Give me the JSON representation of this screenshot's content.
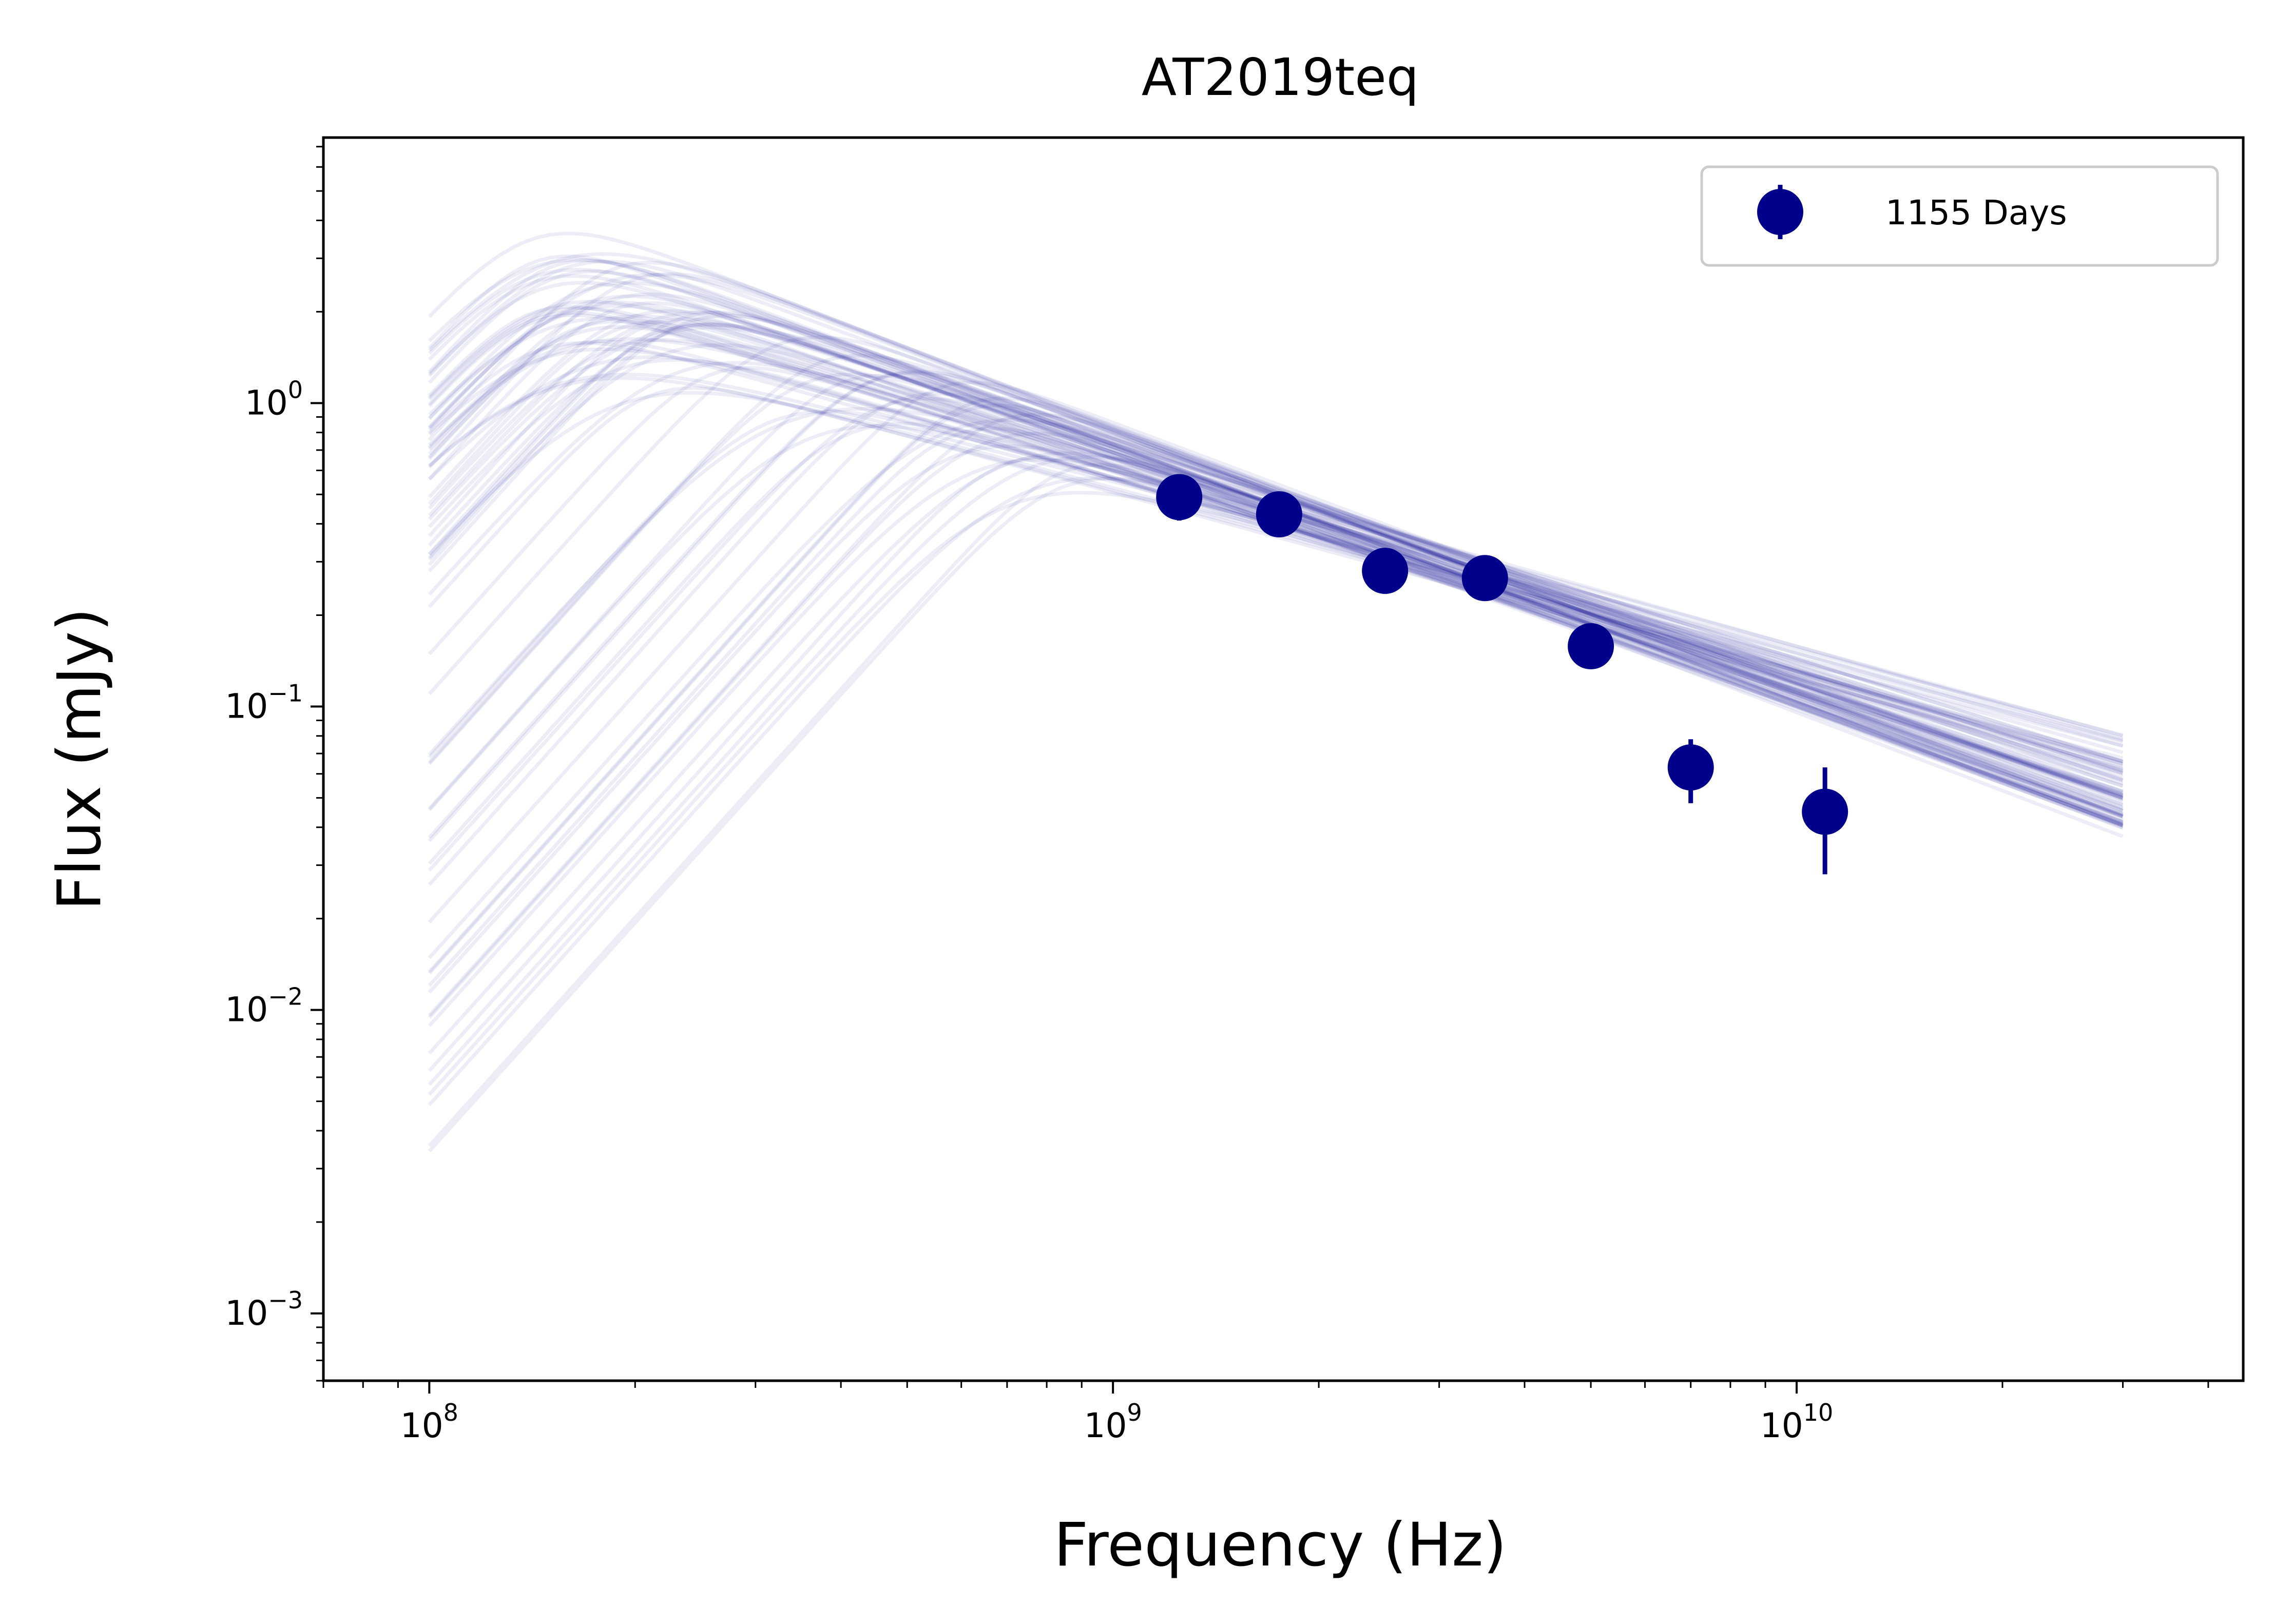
{
  "chart_data": {
    "type": "scatter",
    "title": "AT2019teq",
    "xlabel": "Frequency (Hz)",
    "ylabel": "Flux (mJy)",
    "xscale": "log",
    "yscale": "log",
    "xlim": [
      70000000.0,
      45000000000.0
    ],
    "ylim": [
      0.0006,
      7.5
    ],
    "grid": false,
    "legend_position": "top-right",
    "x_ticks": [
      {
        "value": 100000000.0,
        "base": "10",
        "exp": "8"
      },
      {
        "value": 1000000000.0,
        "base": "10",
        "exp": "9"
      },
      {
        "value": 10000000000.0,
        "base": "10",
        "exp": "10"
      }
    ],
    "y_ticks": [
      {
        "value": 0.001,
        "base": "10",
        "exp": "−3"
      },
      {
        "value": 0.01,
        "base": "10",
        "exp": "−2"
      },
      {
        "value": 0.1,
        "base": "10",
        "exp": "−1"
      },
      {
        "value": 1.0,
        "base": "10",
        "exp": "0"
      }
    ],
    "series": [
      {
        "name": "1155 Days",
        "color": "#00008b",
        "points": [
          {
            "x": 1250000000.0,
            "y": 0.49,
            "yerr_low": 0.08,
            "yerr_high": 0.06
          },
          {
            "x": 1750000000.0,
            "y": 0.43,
            "yerr_low": 0.03,
            "yerr_high": 0.03
          },
          {
            "x": 2500000000.0,
            "y": 0.28,
            "yerr_low": 0.045,
            "yerr_high": 0.03
          },
          {
            "x": 3500000000.0,
            "y": 0.265,
            "yerr_low": 0.02,
            "yerr_high": 0.02
          },
          {
            "x": 5000000000.0,
            "y": 0.158,
            "yerr_low": 0.015,
            "yerr_high": 0.015
          },
          {
            "x": 7000000000.0,
            "y": 0.063,
            "yerr_low": 0.015,
            "yerr_high": 0.015
          },
          {
            "x": 11000000000.0,
            "y": 0.045,
            "yerr_low": 0.017,
            "yerr_high": 0.018
          }
        ]
      }
    ],
    "model_curves": {
      "color": "#00008b",
      "opacity": 0.07,
      "x_range": [
        100000000.0,
        30000000000.0
      ],
      "count": 80
    }
  }
}
